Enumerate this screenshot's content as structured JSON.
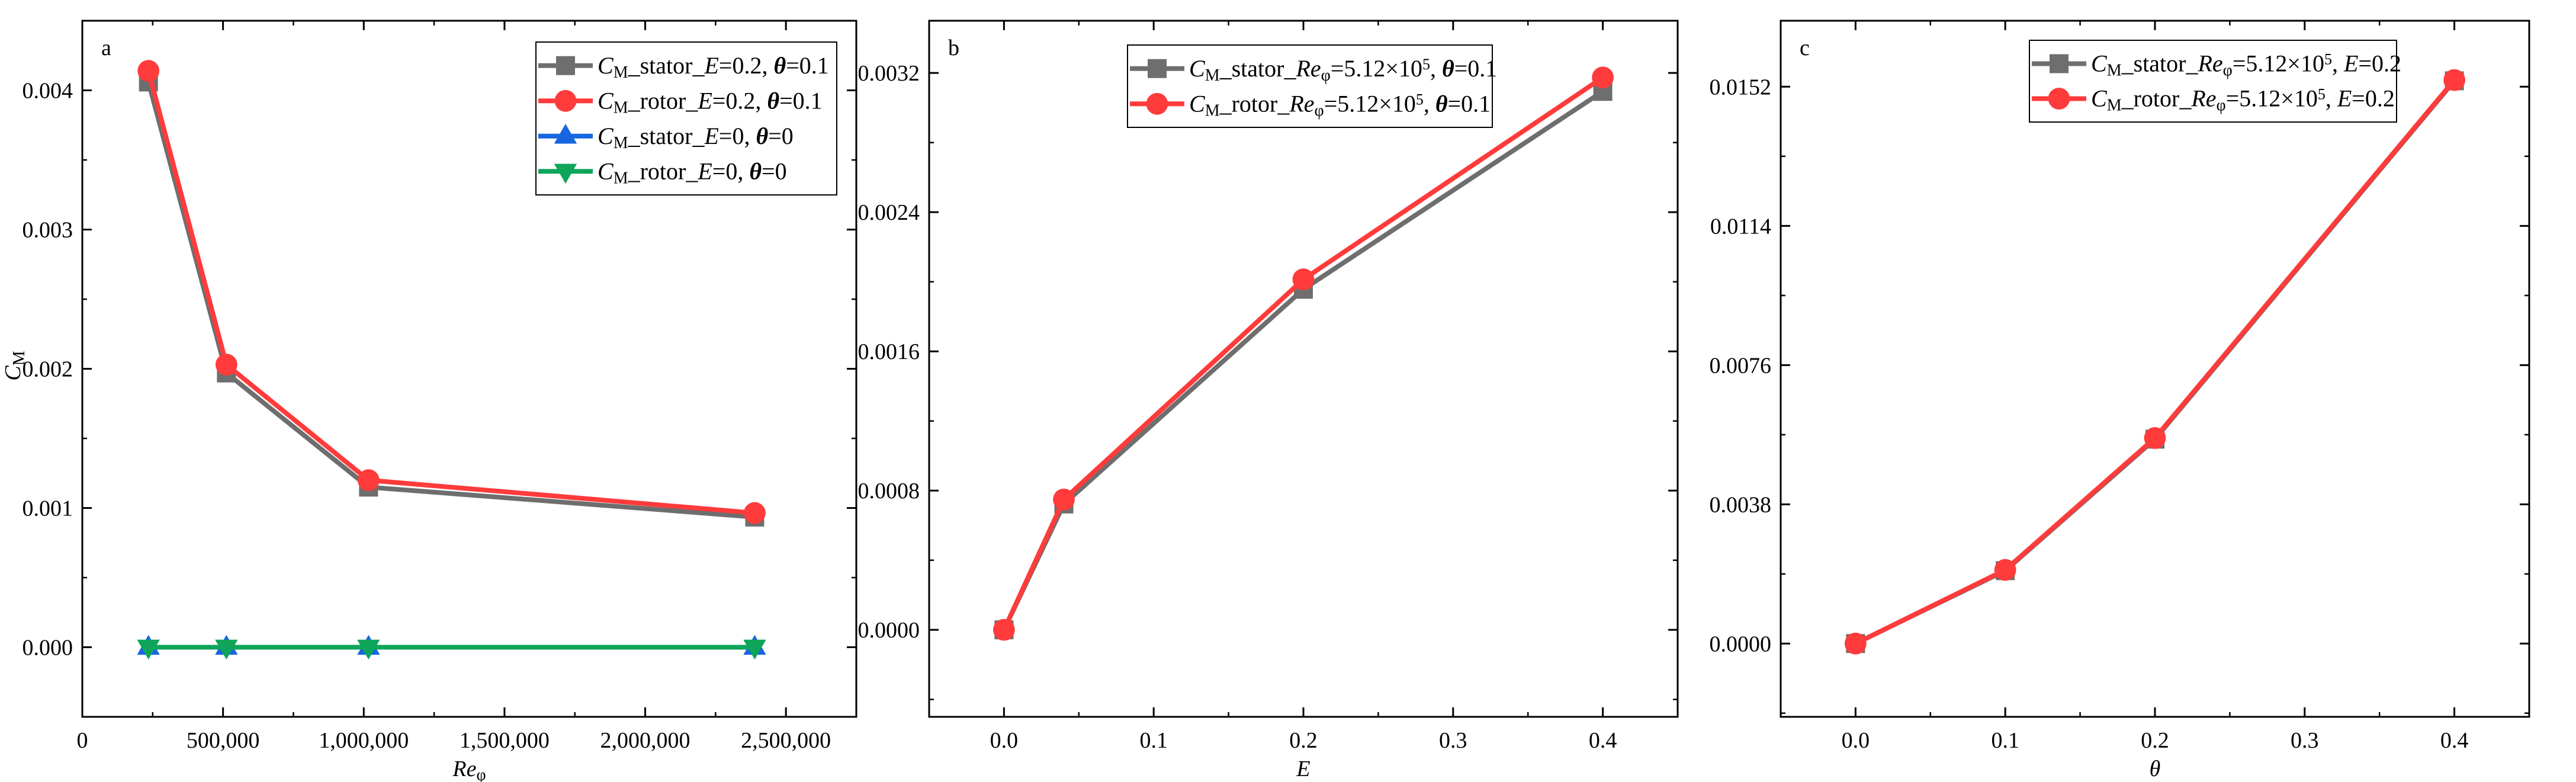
{
  "chart_data": [
    {
      "type": "line",
      "panel_label": "a",
      "xlabel": [
        {
          "t": "Re",
          "s": "i"
        },
        {
          "t": "φ",
          "s": "sub"
        }
      ],
      "ylabel": [
        {
          "t": "C",
          "s": "i"
        },
        {
          "t": "M",
          "s": "sub"
        }
      ],
      "xlim": [
        0,
        2750000
      ],
      "ylim": [
        -0.0005,
        0.0045
      ],
      "xticks": [
        0,
        500000,
        1000000,
        1500000,
        2000000,
        2500000
      ],
      "xtick_labels": [
        "0",
        "500,000",
        "1,000,000",
        "1,500,000",
        "2,000,000",
        "2,500,000"
      ],
      "xminor": 250000,
      "yticks": [
        0,
        0.001,
        0.002,
        0.003,
        0.004
      ],
      "ytick_labels": [
        "0.000",
        "0.001",
        "0.002",
        "0.003",
        "0.004"
      ],
      "yminor": 0.0005,
      "grid": false,
      "legend_position": "top-right",
      "x": [
        235000,
        512000,
        1017000,
        2389000
      ],
      "series": [
        {
          "name": [
            {
              "t": "C",
              "s": "i"
            },
            {
              "t": "M",
              "s": "sub"
            },
            {
              "t": "_stator_"
            },
            {
              "t": "E",
              "s": "i"
            },
            {
              "t": "=0.2, "
            },
            {
              "t": "θ",
              "s": "bi"
            },
            {
              "t": "=0.1"
            }
          ],
          "values": [
            0.00406,
            0.00197,
            0.00115,
            0.000935
          ],
          "color": "#6e6e6e",
          "marker": "square"
        },
        {
          "name": [
            {
              "t": "C",
              "s": "i"
            },
            {
              "t": "M",
              "s": "sub"
            },
            {
              "t": "_rotor_"
            },
            {
              "t": "E",
              "s": "i"
            },
            {
              "t": "=0.2, "
            },
            {
              "t": "θ",
              "s": "bi"
            },
            {
              "t": "=0.1"
            }
          ],
          "values": [
            0.00414,
            0.00203,
            0.0012,
            0.000964
          ],
          "color": "#ff3b3b",
          "marker": "circle"
        },
        {
          "name": [
            {
              "t": "C",
              "s": "i"
            },
            {
              "t": "M",
              "s": "sub"
            },
            {
              "t": "_stator_"
            },
            {
              "t": "E",
              "s": "i"
            },
            {
              "t": "=0, "
            },
            {
              "t": "θ",
              "s": "bi"
            },
            {
              "t": "=0"
            }
          ],
          "values": [
            0,
            0,
            0,
            0
          ],
          "color": "#1766e0",
          "marker": "triangle-up"
        },
        {
          "name": [
            {
              "t": "C",
              "s": "i"
            },
            {
              "t": "M",
              "s": "sub"
            },
            {
              "t": "_rotor_"
            },
            {
              "t": "E",
              "s": "i"
            },
            {
              "t": "=0, "
            },
            {
              "t": "θ",
              "s": "bi"
            },
            {
              "t": "=0"
            }
          ],
          "values": [
            0,
            0,
            0,
            0
          ],
          "color": "#0ea55a",
          "marker": "triangle-down"
        }
      ]
    },
    {
      "type": "line",
      "panel_label": "b",
      "xlabel": [
        {
          "t": "E",
          "s": "i"
        }
      ],
      "ylabel": [],
      "xlim": [
        -0.05,
        0.45
      ],
      "ylim": [
        -0.0005,
        0.0035
      ],
      "xticks": [
        0,
        0.1,
        0.2,
        0.3,
        0.4
      ],
      "xtick_labels": [
        "0.0",
        "0.1",
        "0.2",
        "0.3",
        "0.4"
      ],
      "xminor": 0.05,
      "yticks": [
        0,
        0.0008,
        0.0016,
        0.0024,
        0.0032
      ],
      "ytick_labels": [
        "0.0000",
        "0.0008",
        "0.0016",
        "0.0024",
        "0.0032"
      ],
      "yminor": 0.0004,
      "grid": false,
      "legend_position": "top-center",
      "x": [
        0,
        0.04,
        0.2,
        0.4
      ],
      "series": [
        {
          "name": [
            {
              "t": "C",
              "s": "i"
            },
            {
              "t": "M",
              "s": "sub"
            },
            {
              "t": "_stator_"
            },
            {
              "t": "Re",
              "s": "i"
            },
            {
              "t": "φ",
              "s": "sub"
            },
            {
              "t": "=5.12×10"
            },
            {
              "t": "5",
              "s": "sup"
            },
            {
              "t": ", "
            },
            {
              "t": "θ",
              "s": "bi"
            },
            {
              "t": "=0.1"
            }
          ],
          "values": [
            0,
            0.000723,
            0.001957,
            0.003094
          ],
          "color": "#6e6e6e",
          "marker": "square"
        },
        {
          "name": [
            {
              "t": "C",
              "s": "i"
            },
            {
              "t": "M",
              "s": "sub"
            },
            {
              "t": "_rotor_"
            },
            {
              "t": "Re",
              "s": "i"
            },
            {
              "t": "φ",
              "s": "sub"
            },
            {
              "t": "=5.12×10"
            },
            {
              "t": "5",
              "s": "sup"
            },
            {
              "t": ", "
            },
            {
              "t": "θ",
              "s": "bi"
            },
            {
              "t": "=0.1"
            }
          ],
          "values": [
            0,
            0.000749,
            0.002014,
            0.003174
          ],
          "color": "#ff3b3b",
          "marker": "circle"
        }
      ]
    },
    {
      "type": "line",
      "panel_label": "c",
      "xlabel": [
        {
          "t": "θ",
          "s": "i"
        }
      ],
      "ylabel": [],
      "xlim": [
        -0.05,
        0.45
      ],
      "ylim": [
        -0.002,
        0.017
      ],
      "xticks": [
        0,
        0.1,
        0.2,
        0.3,
        0.4
      ],
      "xtick_labels": [
        "0.0",
        "0.1",
        "0.2",
        "0.3",
        "0.4"
      ],
      "xminor": 0.05,
      "yticks": [
        0,
        0.0038,
        0.0076,
        0.0114,
        0.0152
      ],
      "ytick_labels": [
        "0.0000",
        "0.0038",
        "0.0076",
        "0.0114",
        "0.0152"
      ],
      "yminor": 0.0019,
      "grid": false,
      "legend_position": "top-right",
      "x": [
        0,
        0.1,
        0.2,
        0.4
      ],
      "series": [
        {
          "name": [
            {
              "t": "C",
              "s": "i"
            },
            {
              "t": "M",
              "s": "sub"
            },
            {
              "t": "_stator_"
            },
            {
              "t": "Re",
              "s": "i"
            },
            {
              "t": "φ",
              "s": "sub"
            },
            {
              "t": "=5.12×10"
            },
            {
              "t": "5",
              "s": "sup"
            },
            {
              "t": ", "
            },
            {
              "t": "E",
              "s": "i"
            },
            {
              "t": "=0.2"
            }
          ],
          "values": [
            0,
            0.00199,
            0.00558,
            0.01536
          ],
          "color": "#6e6e6e",
          "marker": "square"
        },
        {
          "name": [
            {
              "t": "C",
              "s": "i"
            },
            {
              "t": "M",
              "s": "sub"
            },
            {
              "t": "_rotor_"
            },
            {
              "t": "Re",
              "s": "i"
            },
            {
              "t": "φ",
              "s": "sub"
            },
            {
              "t": "=5.12×10"
            },
            {
              "t": "5",
              "s": "sup"
            },
            {
              "t": ", "
            },
            {
              "t": "E",
              "s": "i"
            },
            {
              "t": "=0.2"
            }
          ],
          "values": [
            0,
            0.00201,
            0.00561,
            0.01538
          ],
          "color": "#ff3b3b",
          "marker": "circle"
        }
      ]
    }
  ]
}
